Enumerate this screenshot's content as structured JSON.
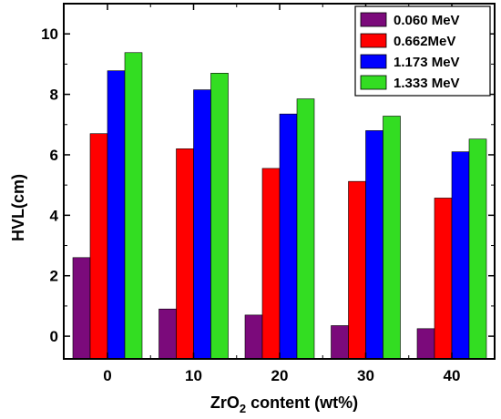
{
  "chart_data": {
    "type": "bar",
    "xlabel_main": "ZrO",
    "xlabel_sub": "2",
    "xlabel_tail": " content (wt%)",
    "ylabel": "HVL(cm)",
    "categories": [
      "0",
      "10",
      "20",
      "30",
      "40"
    ],
    "y_ticks": [
      "0",
      "2",
      "4",
      "6",
      "8",
      "10"
    ],
    "ylim": [
      -0.75,
      11.0
    ],
    "grid": false,
    "legend_position": "top-right",
    "series": [
      {
        "name": "0.060 MeV",
        "color": "#7b0a7b",
        "values": [
          2.6,
          0.9,
          0.7,
          0.35,
          0.25
        ]
      },
      {
        "name": "0.662MeV",
        "color": "#ff0000",
        "values": [
          6.7,
          6.2,
          5.55,
          5.12,
          4.57
        ]
      },
      {
        "name": "1.173 MeV",
        "color": "#0000ff",
        "values": [
          8.78,
          8.15,
          7.35,
          6.8,
          6.1
        ]
      },
      {
        "name": "1.333 MeV",
        "color": "#33dd22",
        "values": [
          9.38,
          8.7,
          7.85,
          7.28,
          6.52
        ]
      }
    ]
  }
}
